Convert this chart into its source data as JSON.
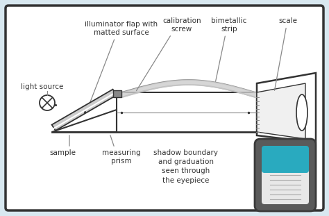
{
  "bg_color": "#d8e8f0",
  "box_color": "#ffffff",
  "box_edge_color": "#333333",
  "line_color": "#888888",
  "dark_color": "#333333",
  "mid_color": "#aaaaaa",
  "teal_color": "#29aabf",
  "gray_inset": "#5a5a5a",
  "labels": {
    "illuminator": "illuminator flap with\nmatted surface",
    "calibration": "calibration\nscrew",
    "bimetallic": "bimetallic\nstrip",
    "scale": "scale",
    "light_source": "light source",
    "sample": "sample",
    "measuring_prism": "measuring\nprism",
    "shadow": "shadow boundary\nand graduation\nseen through\nthe eyepiece"
  },
  "fontsize": 7.5
}
